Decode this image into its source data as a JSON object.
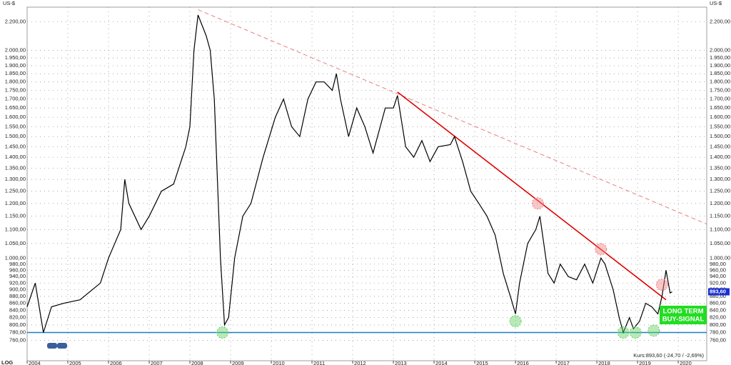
{
  "chart_data": {
    "type": "line",
    "y_unit": "US-$",
    "scale_label": "LOG",
    "log_scale": true,
    "grid": true,
    "xlim": [
      2004,
      2020.7
    ],
    "xticks": [
      2004,
      2005,
      2006,
      2007,
      2008,
      2009,
      2010,
      2011,
      2012,
      2013,
      2014,
      2015,
      2016,
      2017,
      2018,
      2019,
      2020
    ],
    "ylim": [
      710,
      2310
    ],
    "yticks": [
      {
        "value": 760,
        "label": "760,00"
      },
      {
        "value": 780,
        "label": "780,00"
      },
      {
        "value": 800,
        "label": "800,00"
      },
      {
        "value": 820,
        "label": "820,00"
      },
      {
        "value": 840,
        "label": "840,00"
      },
      {
        "value": 860,
        "label": "860,00"
      },
      {
        "value": 880,
        "label": "880,00"
      },
      {
        "value": 900,
        "label": "900,00"
      },
      {
        "value": 920,
        "label": "920,00"
      },
      {
        "value": 940,
        "label": "940,00"
      },
      {
        "value": 960,
        "label": "960,00"
      },
      {
        "value": 980,
        "label": "980,00"
      },
      {
        "value": 1000,
        "label": "1.000,00"
      },
      {
        "value": 1050,
        "label": "1.050,00"
      },
      {
        "value": 1100,
        "label": "1.100,00"
      },
      {
        "value": 1150,
        "label": "1.150,00"
      },
      {
        "value": 1200,
        "label": "1.200,00"
      },
      {
        "value": 1250,
        "label": "1.250,00"
      },
      {
        "value": 1300,
        "label": "1.300,00"
      },
      {
        "value": 1350,
        "label": "1.350,00"
      },
      {
        "value": 1400,
        "label": "1.400,00"
      },
      {
        "value": 1450,
        "label": "1.450,00"
      },
      {
        "value": 1500,
        "label": "1.500,00"
      },
      {
        "value": 1550,
        "label": "1.550,00"
      },
      {
        "value": 1600,
        "label": "1.600,00"
      },
      {
        "value": 1650,
        "label": "1.650,00"
      },
      {
        "value": 1700,
        "label": "1.700,00"
      },
      {
        "value": 1750,
        "label": "1.750,00"
      },
      {
        "value": 1800,
        "label": "1.800,00"
      },
      {
        "value": 1850,
        "label": "1.850,00"
      },
      {
        "value": 1900,
        "label": "1.900,00"
      },
      {
        "value": 1950,
        "label": "1.950,00"
      },
      {
        "value": 2000,
        "label": "2.000,00"
      },
      {
        "value": 2200,
        "label": "2.200,00"
      }
    ],
    "series": [
      {
        "color": "#000000",
        "x": [
          2004.0,
          2004.2,
          2004.4,
          2004.6,
          2004.9,
          2005.3,
          2005.8,
          2006.0,
          2006.3,
          2006.4,
          2006.5,
          2006.8,
          2007.0,
          2007.3,
          2007.6,
          2007.9,
          2008.0,
          2008.1,
          2008.2,
          2008.4,
          2008.5,
          2008.6,
          2008.75,
          2008.85,
          2008.95,
          2009.1,
          2009.3,
          2009.5,
          2009.8,
          2010.1,
          2010.3,
          2010.5,
          2010.7,
          2010.9,
          2011.1,
          2011.3,
          2011.5,
          2011.6,
          2011.7,
          2011.9,
          2012.1,
          2012.3,
          2012.5,
          2012.8,
          2013.0,
          2013.1,
          2013.3,
          2013.5,
          2013.7,
          2013.9,
          2014.1,
          2014.4,
          2014.5,
          2014.7,
          2014.9,
          2015.1,
          2015.3,
          2015.5,
          2015.7,
          2015.9,
          2016.0,
          2016.1,
          2016.3,
          2016.5,
          2016.6,
          2016.8,
          2016.95,
          2017.1,
          2017.3,
          2017.5,
          2017.7,
          2017.9,
          2018.1,
          2018.2,
          2018.4,
          2018.55,
          2018.65,
          2018.8,
          2018.9,
          2019.05,
          2019.2,
          2019.35,
          2019.5,
          2019.6,
          2019.7,
          2019.8,
          2019.85
        ],
        "values": [
          850,
          920,
          780,
          850,
          860,
          870,
          920,
          1000,
          1100,
          1300,
          1200,
          1100,
          1150,
          1250,
          1280,
          1450,
          1550,
          2000,
          2250,
          2100,
          2000,
          1700,
          1000,
          800,
          820,
          1000,
          1150,
          1200,
          1400,
          1600,
          1700,
          1550,
          1500,
          1700,
          1800,
          1800,
          1750,
          1850,
          1700,
          1500,
          1650,
          1550,
          1420,
          1650,
          1650,
          1720,
          1450,
          1400,
          1480,
          1380,
          1450,
          1460,
          1500,
          1380,
          1250,
          1200,
          1150,
          1080,
          950,
          870,
          830,
          920,
          1050,
          1100,
          1150,
          950,
          920,
          980,
          940,
          930,
          980,
          920,
          1000,
          980,
          900,
          820,
          780,
          820,
          790,
          810,
          860,
          850,
          830,
          880,
          960,
          890,
          893.6
        ]
      }
    ],
    "trend_lines": [
      {
        "color": "#e88080",
        "dashed": true,
        "x": [
          2008.2,
          2020.7
        ],
        "values": [
          2290,
          1120
        ]
      },
      {
        "color": "#e00000",
        "dashed": false,
        "x": [
          2013.1,
          2019.7
        ],
        "values": [
          1740,
          870
        ]
      },
      {
        "color": "#1a7fd0",
        "dashed": false,
        "x": [
          2004,
          2020.7
        ],
        "values": [
          780,
          780
        ]
      }
    ],
    "circles": [
      {
        "color": "#f08080",
        "x": [
          2016.55,
          2018.1,
          2019.6
        ],
        "values": [
          1200,
          1030,
          915
        ]
      },
      {
        "color": "#60d060",
        "x": [
          2008.8,
          2016.0,
          2018.65,
          2018.95,
          2019.4
        ],
        "values": [
          780,
          810,
          780,
          780,
          785
        ]
      }
    ],
    "last_price": {
      "value": 893.6,
      "label": "893,60"
    },
    "signal": "LONG TERM BUY-SIGNAL",
    "footer": "Kurs:893,60 (-24,70 / -2,69%)"
  }
}
